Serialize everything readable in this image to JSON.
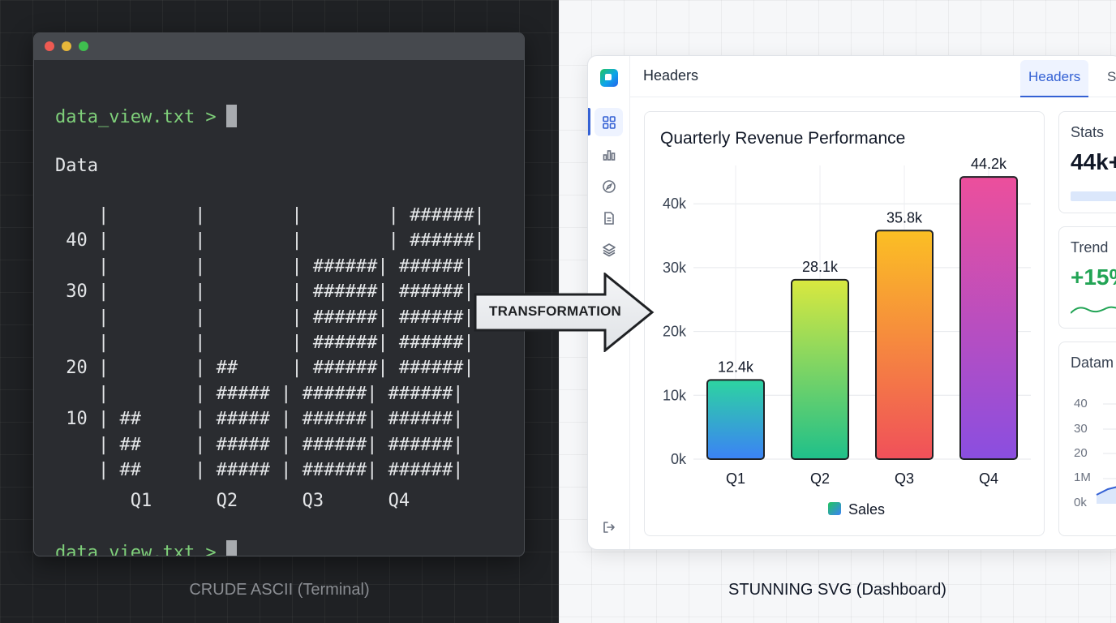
{
  "terminal": {
    "prompt": "data_view.txt >",
    "title": "Data",
    "ascii_rows": [
      "    |        |        |        | ######|",
      " 40 |        |        |        | ######|",
      "    |        |        | ######| ######|",
      " 30 |        |        | ######| ######|",
      "    |        |        | ######| ######|",
      "    |        |        | ######| ######|",
      " 20 |        | ##     | ######| ######|",
      "    |        | ##### | ######| ######|",
      " 10 | ##     | ##### | ######| ######|",
      "    | ##     | ##### | ######| ######|",
      "    | ##     | ##### | ######| ######|"
    ],
    "x_labels": "       Q1      Q2      Q3      Q4"
  },
  "captions": {
    "left": "CRUDE ASCII (Terminal)",
    "right": "STUNNING SVG (Dashboard)"
  },
  "arrow_label": "TRANSFORMATION",
  "dashboard": {
    "header_title": "Headers",
    "tabs": [
      {
        "label": "Headers",
        "active": true
      },
      {
        "label": "Sta",
        "active": false
      }
    ],
    "sidebar_icons": [
      "grid-icon",
      "bar-chart-icon",
      "compass-icon",
      "document-icon",
      "layers-icon",
      "logout-icon"
    ],
    "cards": {
      "stats": {
        "label": "Stats",
        "value": "44k+"
      },
      "trend": {
        "label": "Trend",
        "value": "+15%"
      },
      "datamap": {
        "label": "Datam",
        "ticks": [
          "40",
          "30",
          "20",
          "1M",
          "0k"
        ]
      }
    }
  },
  "chart_data": {
    "type": "bar",
    "title": "Quarterly Revenue Performance",
    "categories": [
      "Q1",
      "Q2",
      "Q3",
      "Q4"
    ],
    "series": [
      {
        "name": "Sales",
        "values": [
          12400,
          28100,
          35800,
          44200
        ]
      }
    ],
    "data_labels": [
      "12.4k",
      "28.1k",
      "35.8k",
      "44.2k"
    ],
    "y_ticks": [
      0,
      10000,
      20000,
      30000,
      40000
    ],
    "y_tick_labels": [
      "0k",
      "10k",
      "20k",
      "30k",
      "40k"
    ],
    "ylim": [
      0,
      46000
    ],
    "grid": true,
    "legend": "bottom-center",
    "bar_gradients": [
      [
        "#2dd4a0",
        "#3b82f6"
      ],
      [
        "#d9e83f",
        "#1fc08a"
      ],
      [
        "#fbbf24",
        "#f0505a"
      ],
      [
        "#ec4f9c",
        "#8a4ee0"
      ]
    ],
    "legend_gradient": [
      "#22c55e",
      "#3b82f6"
    ]
  }
}
